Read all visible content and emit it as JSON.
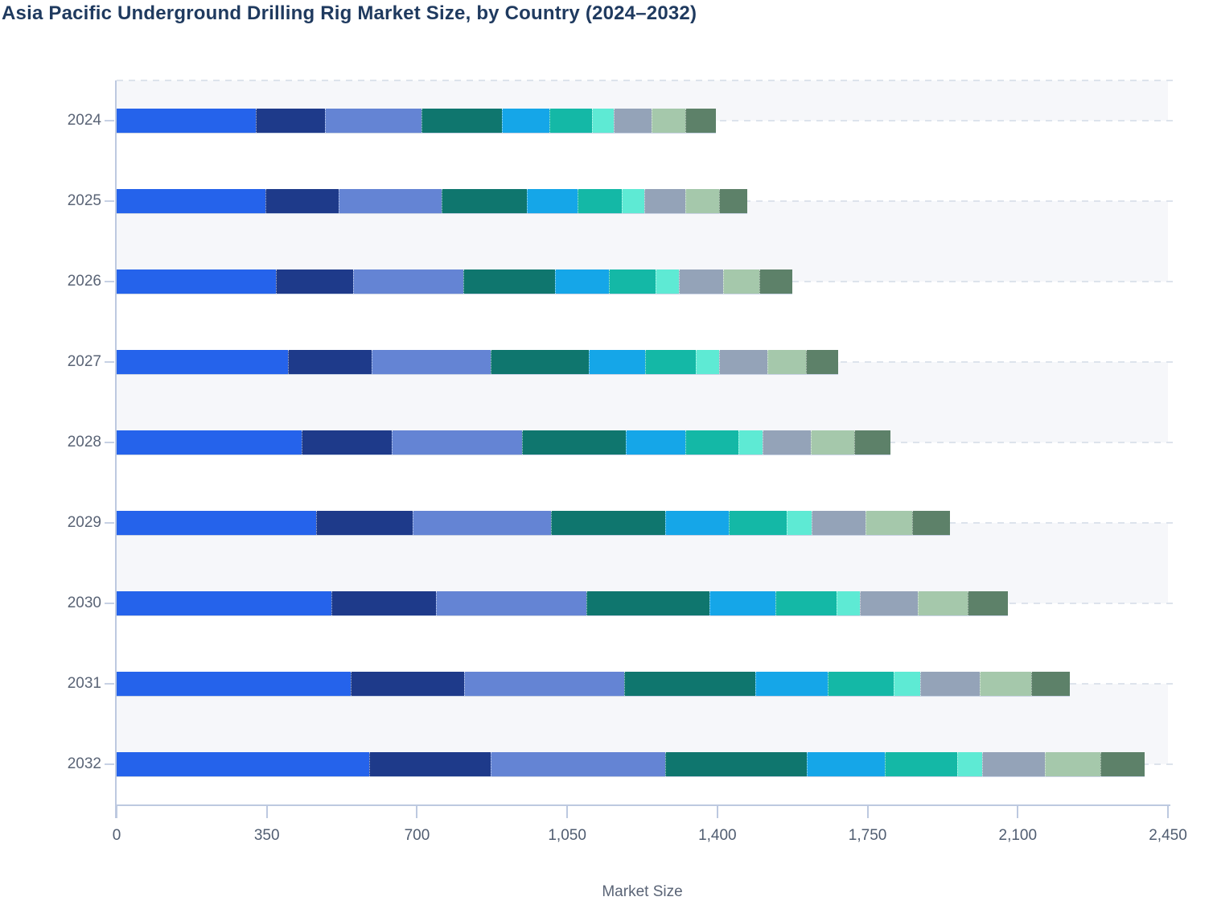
{
  "title": "Asia Pacific Underground Drilling Rig Market Size, by Country (2024–2032)",
  "chart_data": {
    "type": "bar",
    "orientation": "horizontal",
    "stacked": true,
    "title": "Asia Pacific Underground Drilling Rig Market Size, by Country (2024–2032)",
    "xlabel": "Market Size",
    "ylabel": "",
    "categories": [
      "2024",
      "2025",
      "2026",
      "2027",
      "2028",
      "2029",
      "2030",
      "2031",
      "2032"
    ],
    "series": [
      {
        "color": "#2563eb",
        "values": [
          325,
          346,
          371,
          399,
          431,
          465,
          501,
          545,
          589
        ]
      },
      {
        "color": "#1e3a8a",
        "values": [
          160,
          172,
          180,
          196,
          210,
          224,
          243,
          265,
          283
        ]
      },
      {
        "color": "#6484d4",
        "values": [
          225,
          240,
          257,
          276,
          304,
          323,
          351,
          372,
          406
        ]
      },
      {
        "color": "#0f766e",
        "values": [
          188,
          198,
          214,
          229,
          241,
          266,
          286,
          307,
          330
        ]
      },
      {
        "color": "#15a6e8",
        "values": [
          110,
          118,
          126,
          132,
          140,
          148,
          155,
          169,
          182
        ]
      },
      {
        "color": "#14b8a6",
        "values": [
          100,
          103,
          108,
          118,
          123,
          136,
          142,
          153,
          169
        ]
      },
      {
        "color": "#5eead4",
        "values": [
          50,
          52,
          54,
          54,
          57,
          57,
          55,
          61,
          58
        ]
      },
      {
        "color": "#94a3b8",
        "values": [
          88,
          96,
          103,
          112,
          112,
          127,
          135,
          140,
          147
        ]
      },
      {
        "color": "#a5c8ab",
        "values": [
          80,
          80,
          85,
          90,
          101,
          108,
          115,
          120,
          129
        ]
      },
      {
        "color": "#5d8169",
        "values": [
          70,
          65,
          76,
          75,
          85,
          88,
          94,
          90,
          103
        ]
      }
    ],
    "totals": [
      1396,
      1470,
      1574,
      1681,
      1804,
      1942,
      2077,
      2222,
      2396
    ],
    "xlim": [
      0,
      2450
    ],
    "x_ticks": [
      0,
      350,
      700,
      1050,
      1400,
      1750,
      2100,
      2450
    ],
    "x_tick_labels": [
      "0",
      "350",
      "700",
      "1,050",
      "1,400",
      "1,750",
      "2,100",
      "2,450"
    ],
    "grid": "horizontal dashed gridlines at plot top and each bar centerline",
    "row_stripes": "alternating light bands between gridlines",
    "legend": "none"
  },
  "colors": {
    "background": "#ffffff",
    "title_text": "#1f3a5f",
    "axis_line": "#bdc9e0",
    "gridline": "#dde3ec",
    "row_stripe": "#f6f7fa",
    "y_tick_label": "#5a6476",
    "x_tick_label": "#505d71",
    "axis_title": "#5a6476"
  }
}
